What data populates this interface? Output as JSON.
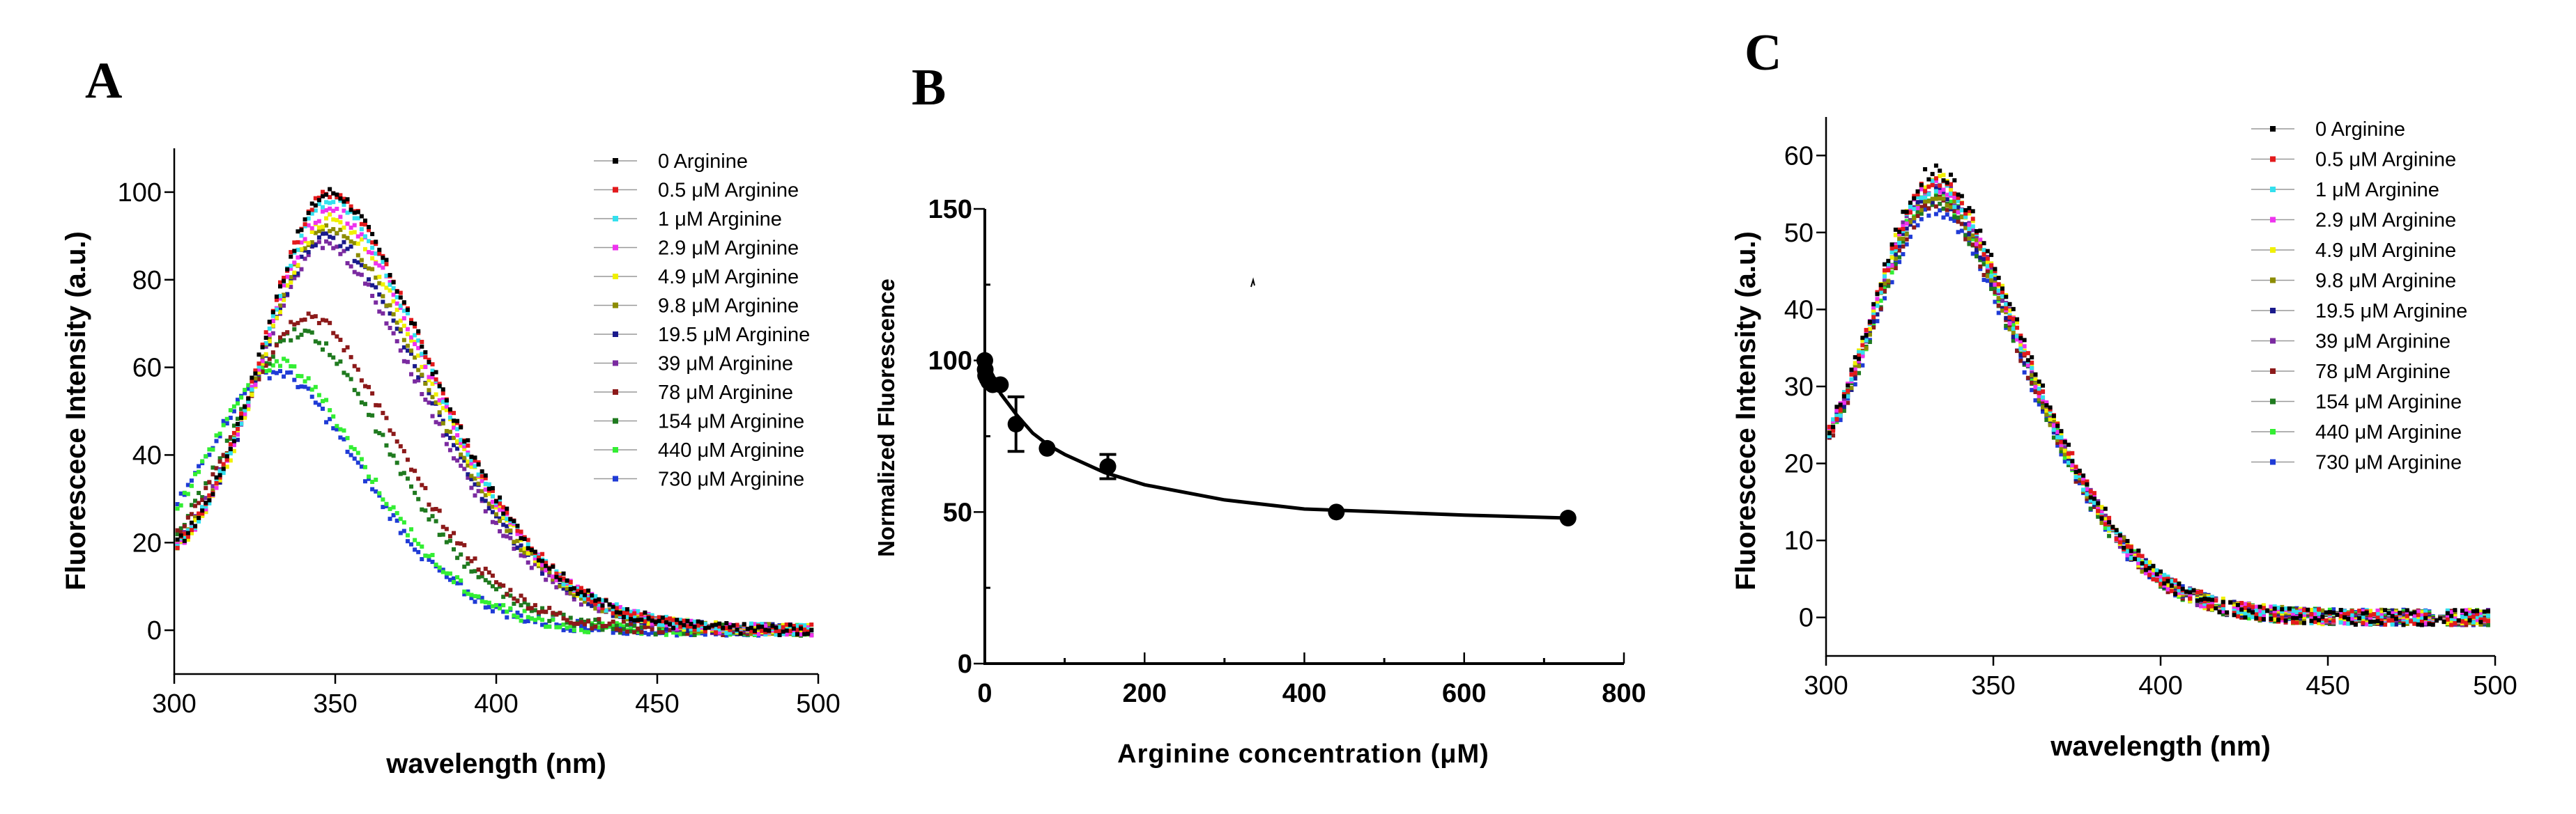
{
  "panels": {
    "A": {
      "letter": "A",
      "xlabel": "wavelength (nm)",
      "ylabel": "Fluorescece Intensity (a.u.)",
      "xticks": [
        "300",
        "350",
        "400",
        "450",
        "500"
      ],
      "yticks": [
        "0",
        "20",
        "40",
        "60",
        "80",
        "100"
      ]
    },
    "B": {
      "letter": "B",
      "xlabel": "Arginine concentration (μM)",
      "ylabel": "Normalized Fluorescence",
      "xticks": [
        "0",
        "200",
        "400",
        "600",
        "800"
      ],
      "yticks": [
        "0",
        "50",
        "100",
        "150"
      ]
    },
    "C": {
      "letter": "C",
      "xlabel": "wavelength (nm)",
      "ylabel": "Fluorescece Intensity (a.u.)",
      "xticks": [
        "300",
        "350",
        "400",
        "450",
        "500"
      ],
      "yticks": [
        "0",
        "10",
        "20",
        "30",
        "40",
        "50",
        "60"
      ]
    }
  },
  "legend_labels": [
    "0          Arginine",
    "0.5  μM Arginine",
    "1    μM Arginine",
    "2.9  μM Arginine",
    "4.9  μM Arginine",
    "9.8  μM Arginine",
    "19.5 μM Arginine",
    "39  μM Arginine",
    "78  μM Arginine",
    "154 μM Arginine",
    "440  μM Arginine",
    "730  μM Arginine"
  ],
  "series_colors": [
    "#000000",
    "#e31a1c",
    "#33e0ee",
    "#ee33ee",
    "#f0f000",
    "#8c8c00",
    "#1a1a8c",
    "#7a2aa0",
    "#8c1a1a",
    "#1f7a1f",
    "#33ee33",
    "#1f3bd6"
  ],
  "chart_data": [
    {
      "panel": "A",
      "type": "scatter",
      "xlabel": "wavelength (nm)",
      "ylabel": "Fluorescece Intensity (a.u.)",
      "xlim": [
        300,
        500
      ],
      "ylim": [
        -10,
        110
      ],
      "grid": false,
      "legend": "top-right",
      "series": [
        {
          "name": "0          Arginine",
          "peak_x": 349,
          "peak_y": 100
        },
        {
          "name": "0.5  μM Arginine",
          "peak_x": 349,
          "peak_y": 100
        },
        {
          "name": "1    μM Arginine",
          "peak_x": 349,
          "peak_y": 98
        },
        {
          "name": "2.9  μM Arginine",
          "peak_x": 349,
          "peak_y": 96
        },
        {
          "name": "4.9  μM Arginine",
          "peak_x": 349,
          "peak_y": 94
        },
        {
          "name": "9.8  μM Arginine",
          "peak_x": 348,
          "peak_y": 92
        },
        {
          "name": "19.5 μM Arginine",
          "peak_x": 348,
          "peak_y": 90
        },
        {
          "name": "39  μM Arginine",
          "peak_x": 347,
          "peak_y": 88
        },
        {
          "name": "78  μM Arginine",
          "peak_x": 342,
          "peak_y": 72
        },
        {
          "name": "154 μM Arginine",
          "peak_x": 340,
          "peak_y": 68
        },
        {
          "name": "440  μM Arginine",
          "peak_x": 333,
          "peak_y": 61
        },
        {
          "name": "730  μM Arginine",
          "peak_x": 332,
          "peak_y": 59
        }
      ]
    },
    {
      "panel": "B",
      "type": "scatter",
      "xlabel": "Arginine concentration (μM)",
      "ylabel": "Normalized Fluorescence",
      "xlim": [
        0,
        800
      ],
      "ylim": [
        0,
        150
      ],
      "grid": false,
      "points": [
        {
          "x": 0,
          "y": 100,
          "err": 0
        },
        {
          "x": 0.5,
          "y": 97,
          "err": 0
        },
        {
          "x": 1,
          "y": 95,
          "err": 0
        },
        {
          "x": 2.9,
          "y": 94,
          "err": 0
        },
        {
          "x": 4.9,
          "y": 93,
          "err": 0
        },
        {
          "x": 9.8,
          "y": 92,
          "err": 0
        },
        {
          "x": 19.5,
          "y": 92,
          "err": 0
        },
        {
          "x": 39,
          "y": 79,
          "err": 9
        },
        {
          "x": 78,
          "y": 71,
          "err": 0
        },
        {
          "x": 154,
          "y": 65,
          "err": 4
        },
        {
          "x": 440,
          "y": 50,
          "err": 0
        },
        {
          "x": 730,
          "y": 48,
          "err": 0
        }
      ],
      "fit": {
        "x": [
          0,
          20,
          40,
          60,
          80,
          100,
          150,
          200,
          300,
          400,
          500,
          600,
          730
        ],
        "y": [
          99,
          89,
          82,
          76,
          72,
          69,
          63,
          59,
          54,
          51,
          50,
          49,
          48
        ]
      }
    },
    {
      "panel": "C",
      "type": "scatter",
      "xlabel": "wavelength (nm)",
      "ylabel": "Fluorescece Intensity (a.u.)",
      "xlim": [
        300,
        500
      ],
      "ylim": [
        -5,
        65
      ],
      "grid": false,
      "legend": "top-right",
      "series_peak_x": 333,
      "series_peak_y": [
        58,
        57,
        56,
        56,
        57,
        55,
        55,
        56,
        54,
        54,
        55,
        53
      ]
    }
  ]
}
